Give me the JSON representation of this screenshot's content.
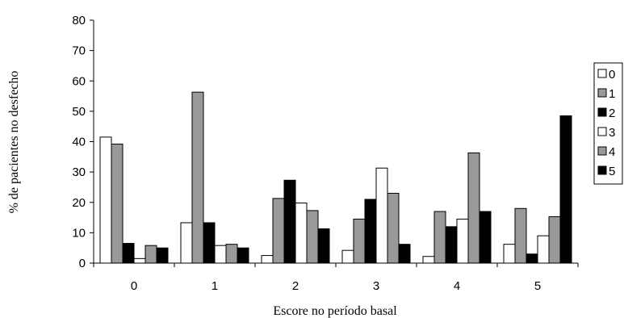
{
  "chart_data": {
    "type": "bar",
    "xlabel": "Escore  no período basal",
    "ylabel": "% de pacientes no desfecho",
    "ylim": [
      0,
      80
    ],
    "yticks": [
      0,
      10,
      20,
      30,
      40,
      50,
      60,
      70,
      80
    ],
    "categories": [
      "0",
      "1",
      "2",
      "3",
      "4",
      "5"
    ],
    "legend_position": "right",
    "series": [
      {
        "name": "0",
        "color": "#ffffff",
        "values": [
          41.5,
          13.3,
          2.5,
          4.2,
          2.2,
          6.2
        ]
      },
      {
        "name": "1",
        "color": "#999999",
        "values": [
          39.2,
          56.3,
          21.3,
          14.5,
          17.0,
          18.0
        ]
      },
      {
        "name": "2",
        "color": "#000000",
        "values": [
          6.5,
          13.3,
          27.3,
          21.0,
          12.0,
          3.0
        ]
      },
      {
        "name": "3",
        "color": "#ffffff",
        "values": [
          1.5,
          5.8,
          19.8,
          31.3,
          14.5,
          9.0
        ]
      },
      {
        "name": "4",
        "color": "#999999",
        "values": [
          5.8,
          6.2,
          17.3,
          23.0,
          36.3,
          15.3
        ]
      },
      {
        "name": "5",
        "color": "#000000",
        "values": [
          5.0,
          5.0,
          11.3,
          6.2,
          17.0,
          48.5
        ]
      }
    ]
  }
}
